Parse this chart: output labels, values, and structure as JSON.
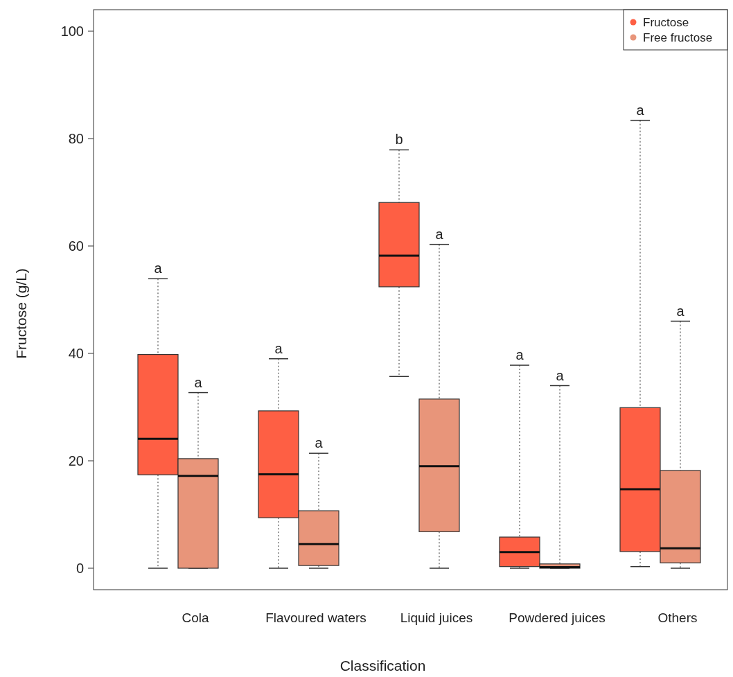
{
  "chart_data": {
    "type": "box",
    "xlabel": "Classification",
    "ylabel": "Fructose (g/L)",
    "categories": [
      "Cola",
      "Flavoured waters",
      "Liquid juices",
      "Powdered juices",
      "Others"
    ],
    "ylim": [
      -4,
      104
    ],
    "yticks": [
      0,
      20,
      40,
      60,
      80,
      100
    ],
    "legend": "top right",
    "grid": false,
    "series": [
      {
        "name": "Fructose",
        "color": "#fe5f44",
        "boxes": [
          {
            "low": 0,
            "q1": 17.4,
            "median": 24.1,
            "q3": 39.8,
            "high": 53.9
          },
          {
            "low": 0,
            "q1": 9.4,
            "median": 17.5,
            "q3": 29.3,
            "high": 39
          },
          {
            "low": 35.7,
            "q1": 52.4,
            "median": 58.2,
            "q3": 68.1,
            "high": 77.9
          },
          {
            "low": 0,
            "q1": 0.3,
            "median": 3,
            "q3": 5.8,
            "high": 37.8
          },
          {
            "low": 0.3,
            "q1": 3.1,
            "median": 14.7,
            "q3": 29.9,
            "high": 83.4
          }
        ]
      },
      {
        "name": "Free fructose",
        "color": "#e8957a",
        "boxes": [
          {
            "low": 0,
            "q1": 0,
            "median": 17.2,
            "q3": 20.4,
            "high": 32.7
          },
          {
            "low": 0,
            "q1": 0.5,
            "median": 4.5,
            "q3": 10.7,
            "high": 21.4
          },
          {
            "low": 0,
            "q1": 6.8,
            "median": 19,
            "q3": 31.5,
            "high": 60.3
          },
          {
            "low": 0,
            "q1": 0,
            "median": 0.2,
            "q3": 0.8,
            "high": 34
          },
          {
            "low": 0,
            "q1": 1,
            "median": 3.7,
            "q3": 18.2,
            "high": 46
          }
        ]
      }
    ],
    "annotations": [
      "a",
      "a",
      "a",
      "a",
      "b",
      "a",
      "a",
      "a",
      "a",
      "a"
    ]
  }
}
